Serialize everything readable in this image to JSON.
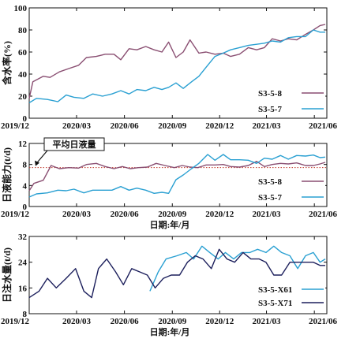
{
  "chart_data": [
    {
      "type": "line",
      "ylabel": "含水率(%)",
      "xlabel": "",
      "xlim": [
        "2019-12-01",
        "2021-06-25"
      ],
      "ylim": [
        0,
        100
      ],
      "yticks": [
        0,
        20,
        40,
        60,
        80,
        100
      ],
      "xticks": [
        "2019/12",
        "2020/03",
        "2020/06",
        "2020/09",
        "2020/12",
        "2021/03",
        "2021/06"
      ],
      "legend_position": "right",
      "series": [
        {
          "name": "S3-5-8",
          "color": "#8a4f72",
          "points": [
            [
              "2019-12-01",
              18
            ],
            [
              "2019-12-08",
              33
            ],
            [
              "2019-12-28",
              38
            ],
            [
              "2020-01-10",
              37
            ],
            [
              "2020-01-28",
              42
            ],
            [
              "2020-02-15",
              45
            ],
            [
              "2020-03-05",
              48
            ],
            [
              "2020-03-20",
              55
            ],
            [
              "2020-04-08",
              56
            ],
            [
              "2020-04-25",
              58
            ],
            [
              "2020-05-12",
              58
            ],
            [
              "2020-05-25",
              53
            ],
            [
              "2020-06-10",
              63
            ],
            [
              "2020-06-25",
              62
            ],
            [
              "2020-07-12",
              65
            ],
            [
              "2020-07-28",
              62
            ],
            [
              "2020-08-12",
              60
            ],
            [
              "2020-08-25",
              69
            ],
            [
              "2020-09-08",
              55
            ],
            [
              "2020-09-22",
              60
            ],
            [
              "2020-10-05",
              71
            ],
            [
              "2020-10-22",
              59
            ],
            [
              "2020-11-05",
              60
            ],
            [
              "2020-11-22",
              58
            ],
            [
              "2020-12-08",
              59
            ],
            [
              "2020-12-22",
              56
            ],
            [
              "2021-01-08",
              58
            ],
            [
              "2021-01-25",
              64
            ],
            [
              "2021-02-10",
              62
            ],
            [
              "2021-02-25",
              64
            ],
            [
              "2021-03-12",
              72
            ],
            [
              "2021-03-28",
              70
            ],
            [
              "2021-04-12",
              72
            ],
            [
              "2021-04-28",
              71
            ],
            [
              "2021-05-15",
              76
            ],
            [
              "2021-05-30",
              80
            ],
            [
              "2021-06-12",
              84
            ],
            [
              "2021-06-22",
              85
            ]
          ]
        },
        {
          "name": "S3-5-7",
          "color": "#2aa0d2",
          "points": [
            [
              "2019-12-01",
              14
            ],
            [
              "2019-12-15",
              18
            ],
            [
              "2020-01-05",
              17
            ],
            [
              "2020-01-25",
              15
            ],
            [
              "2020-02-10",
              21
            ],
            [
              "2020-02-25",
              19
            ],
            [
              "2020-03-15",
              18
            ],
            [
              "2020-04-01",
              22
            ],
            [
              "2020-04-20",
              20
            ],
            [
              "2020-05-08",
              22
            ],
            [
              "2020-05-25",
              25
            ],
            [
              "2020-06-10",
              22
            ],
            [
              "2020-06-25",
              26
            ],
            [
              "2020-07-12",
              25
            ],
            [
              "2020-07-28",
              28
            ],
            [
              "2020-08-12",
              26
            ],
            [
              "2020-08-25",
              28
            ],
            [
              "2020-09-08",
              32
            ],
            [
              "2020-09-22",
              27
            ],
            [
              "2020-10-08",
              33
            ],
            [
              "2020-10-22",
              38
            ],
            [
              "2020-11-08",
              48
            ],
            [
              "2020-11-22",
              56
            ],
            [
              "2020-12-08",
              59
            ],
            [
              "2020-12-22",
              62
            ],
            [
              "2021-01-08",
              64
            ],
            [
              "2021-01-25",
              66
            ],
            [
              "2021-02-10",
              67
            ],
            [
              "2021-02-25",
              68
            ],
            [
              "2021-03-12",
              70
            ],
            [
              "2021-03-28",
              69
            ],
            [
              "2021-04-12",
              73
            ],
            [
              "2021-04-28",
              74
            ],
            [
              "2021-05-15",
              74
            ],
            [
              "2021-05-30",
              80
            ],
            [
              "2021-06-12",
              78
            ],
            [
              "2021-06-22",
              78
            ]
          ]
        }
      ]
    },
    {
      "type": "line",
      "ylabel": "日液能力(t/d)",
      "xlabel": "日期:年/月",
      "xlim": [
        "2019-12-01",
        "2021-06-25"
      ],
      "ylim": [
        0,
        12
      ],
      "yticks": [
        0,
        4,
        8,
        12
      ],
      "xticks": [
        "2019/12",
        "2020/03",
        "2020/06",
        "2020/09",
        "2020/12",
        "2021/03",
        "2021/06"
      ],
      "legend_position": "right",
      "reference_line": {
        "label": "平均日液量",
        "value": 7.4,
        "color": "#c0392b"
      },
      "series": [
        {
          "name": "S3-5-8",
          "color": "#8a4f72",
          "points": [
            [
              "2019-12-01",
              3.0
            ],
            [
              "2019-12-10",
              4.4
            ],
            [
              "2019-12-28",
              5.0
            ],
            [
              "2020-01-12",
              7.8
            ],
            [
              "2020-01-28",
              7.2
            ],
            [
              "2020-02-15",
              7.4
            ],
            [
              "2020-03-05",
              7.3
            ],
            [
              "2020-03-20",
              8.0
            ],
            [
              "2020-04-08",
              8.2
            ],
            [
              "2020-04-25",
              7.6
            ],
            [
              "2020-05-12",
              7.2
            ],
            [
              "2020-05-28",
              7.6
            ],
            [
              "2020-06-12",
              7.2
            ],
            [
              "2020-06-28",
              7.4
            ],
            [
              "2020-07-15",
              7.5
            ],
            [
              "2020-08-01",
              8.2
            ],
            [
              "2020-08-18",
              7.8
            ],
            [
              "2020-09-05",
              7.4
            ],
            [
              "2020-09-20",
              7.8
            ],
            [
              "2020-10-05",
              7.5
            ],
            [
              "2020-10-20",
              7.4
            ],
            [
              "2020-11-05",
              7.9
            ],
            [
              "2020-11-22",
              7.9
            ],
            [
              "2020-12-08",
              8.0
            ],
            [
              "2020-12-22",
              7.6
            ],
            [
              "2021-01-08",
              7.5
            ],
            [
              "2021-01-25",
              7.8
            ],
            [
              "2021-02-10",
              8.6
            ],
            [
              "2021-02-25",
              7.6
            ],
            [
              "2021-03-12",
              8.0
            ],
            [
              "2021-03-28",
              8.2
            ],
            [
              "2021-04-12",
              8.1
            ],
            [
              "2021-04-28",
              8.3
            ],
            [
              "2021-05-15",
              7.8
            ],
            [
              "2021-05-30",
              7.8
            ],
            [
              "2021-06-12",
              8.1
            ],
            [
              "2021-06-22",
              8.4
            ]
          ]
        },
        {
          "name": "S3-5-7",
          "color": "#2aa0d2",
          "points": [
            [
              "2019-12-01",
              1.8
            ],
            [
              "2019-12-15",
              2.4
            ],
            [
              "2020-01-05",
              2.6
            ],
            [
              "2020-01-25",
              3.1
            ],
            [
              "2020-02-10",
              3.0
            ],
            [
              "2020-02-25",
              3.3
            ],
            [
              "2020-03-15",
              2.6
            ],
            [
              "2020-04-01",
              3.1
            ],
            [
              "2020-04-20",
              3.1
            ],
            [
              "2020-05-08",
              3.1
            ],
            [
              "2020-05-25",
              3.8
            ],
            [
              "2020-06-10",
              3.1
            ],
            [
              "2020-06-25",
              3.5
            ],
            [
              "2020-07-12",
              3.1
            ],
            [
              "2020-07-28",
              2.5
            ],
            [
              "2020-08-12",
              2.7
            ],
            [
              "2020-08-25",
              2.5
            ],
            [
              "2020-09-08",
              5.1
            ],
            [
              "2020-09-22",
              6.0
            ],
            [
              "2020-10-08",
              7.2
            ],
            [
              "2020-10-22",
              8.2
            ],
            [
              "2020-11-08",
              9.9
            ],
            [
              "2020-11-22",
              8.8
            ],
            [
              "2020-12-08",
              9.9
            ],
            [
              "2020-12-22",
              8.9
            ],
            [
              "2021-01-08",
              8.9
            ],
            [
              "2021-01-25",
              8.8
            ],
            [
              "2021-02-10",
              8.2
            ],
            [
              "2021-02-25",
              9.2
            ],
            [
              "2021-03-12",
              9.0
            ],
            [
              "2021-03-28",
              9.7
            ],
            [
              "2021-04-12",
              9.0
            ],
            [
              "2021-04-28",
              9.7
            ],
            [
              "2021-05-15",
              9.6
            ],
            [
              "2021-05-30",
              9.8
            ],
            [
              "2021-06-12",
              9.3
            ],
            [
              "2021-06-22",
              9.4
            ]
          ]
        }
      ]
    },
    {
      "type": "line",
      "ylabel": "日注水量(t/d)",
      "xlabel": "日期:年/月",
      "xlim": [
        "2019-12-01",
        "2021-06-25"
      ],
      "ylim": [
        8,
        32
      ],
      "yticks": [
        8,
        16,
        24,
        32
      ],
      "xticks": [
        "2019/12",
        "2020/03",
        "2020/06",
        "2020/09",
        "2020/12",
        "2021/03",
        "2021/06"
      ],
      "legend_position": "right",
      "series": [
        {
          "name": "S3-5-X61",
          "color": "#2aa0d2",
          "points": [
            [
              "2020-07-20",
              15
            ],
            [
              "2020-08-05",
              21
            ],
            [
              "2020-08-20",
              25
            ],
            [
              "2020-09-10",
              26
            ],
            [
              "2020-09-28",
              27
            ],
            [
              "2020-10-12",
              25
            ],
            [
              "2020-10-28",
              29
            ],
            [
              "2020-11-12",
              27
            ],
            [
              "2020-11-28",
              25
            ],
            [
              "2020-12-12",
              27
            ],
            [
              "2020-12-28",
              25
            ],
            [
              "2021-01-12",
              27
            ],
            [
              "2021-01-28",
              27
            ],
            [
              "2021-02-12",
              28
            ],
            [
              "2021-02-28",
              27
            ],
            [
              "2021-03-15",
              29
            ],
            [
              "2021-03-30",
              27
            ],
            [
              "2021-04-15",
              26
            ],
            [
              "2021-04-30",
              22
            ],
            [
              "2021-05-15",
              26
            ],
            [
              "2021-05-30",
              27
            ],
            [
              "2021-06-12",
              24
            ],
            [
              "2021-06-22",
              25
            ]
          ]
        },
        {
          "name": "S3-5-X71",
          "color": "#1c1f5c",
          "points": [
            [
              "2019-12-01",
              13
            ],
            [
              "2019-12-20",
              15
            ],
            [
              "2020-01-05",
              19
            ],
            [
              "2020-01-22",
              16
            ],
            [
              "2020-02-10",
              19
            ],
            [
              "2020-02-28",
              22
            ],
            [
              "2020-03-15",
              15
            ],
            [
              "2020-03-30",
              13
            ],
            [
              "2020-04-12",
              22
            ],
            [
              "2020-04-28",
              25
            ],
            [
              "2020-05-15",
              21
            ],
            [
              "2020-05-30",
              17
            ],
            [
              "2020-06-15",
              22
            ],
            [
              "2020-06-30",
              21
            ],
            [
              "2020-07-15",
              20
            ],
            [
              "2020-07-30",
              16
            ],
            [
              "2020-08-15",
              19
            ],
            [
              "2020-08-30",
              20
            ],
            [
              "2020-09-15",
              20
            ],
            [
              "2020-09-30",
              24
            ],
            [
              "2020-10-15",
              26
            ],
            [
              "2020-10-30",
              25
            ],
            [
              "2020-11-15",
              22
            ],
            [
              "2020-11-30",
              28
            ],
            [
              "2020-12-15",
              25
            ],
            [
              "2020-12-30",
              24
            ],
            [
              "2021-01-15",
              27
            ],
            [
              "2021-01-30",
              25
            ],
            [
              "2021-02-15",
              25
            ],
            [
              "2021-02-28",
              24
            ],
            [
              "2021-03-15",
              20
            ],
            [
              "2021-03-30",
              20
            ],
            [
              "2021-04-15",
              24
            ],
            [
              "2021-04-30",
              24
            ],
            [
              "2021-05-15",
              24
            ],
            [
              "2021-05-30",
              24
            ],
            [
              "2021-06-12",
              23
            ],
            [
              "2021-06-22",
              23
            ]
          ]
        }
      ]
    }
  ]
}
